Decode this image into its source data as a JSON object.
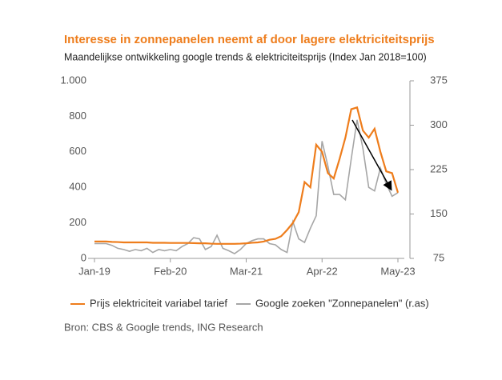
{
  "chart_data": {
    "type": "line",
    "title": "Interesse in zonnepanelen neemt af door lagere elektriciteitsprijs",
    "subtitle": "Maandelijkse ontwikkeling google trends & elektriciteitsprijs (Index Jan 2018=100)",
    "source": "Bron: CBS & Google trends, ING Research",
    "categories": [
      "Jan-19",
      null,
      null,
      null,
      null,
      null,
      null,
      null,
      null,
      null,
      null,
      null,
      null,
      "Feb-20",
      null,
      null,
      null,
      null,
      null,
      null,
      null,
      null,
      null,
      null,
      null,
      null,
      "Mar-21",
      null,
      null,
      null,
      null,
      null,
      null,
      null,
      null,
      null,
      null,
      null,
      null,
      "Apr-22",
      null,
      null,
      null,
      null,
      null,
      null,
      null,
      null,
      null,
      null,
      null,
      null,
      "May-23"
    ],
    "series": [
      {
        "name": "Prijs elektriciteit variabel tarief",
        "color": "#ee7d1c",
        "values": [
          95,
          95,
          95,
          93,
          92,
          90,
          90,
          90,
          90,
          90,
          88,
          88,
          88,
          87,
          87,
          87,
          87,
          86,
          85,
          85,
          83,
          82,
          82,
          82,
          82,
          83,
          85,
          88,
          90,
          95,
          105,
          110,
          125,
          160,
          200,
          260,
          430,
          400,
          640,
          600,
          480,
          450,
          560,
          680,
          840,
          850,
          720,
          680,
          730,
          600,
          490,
          480,
          370
        ]
      },
      {
        "name": "Google zoeken \"Zonnepanelen\" (r.as)",
        "color": "#a6a6a6",
        "axis": "y2",
        "values": [
          100,
          100,
          100,
          97,
          92,
          90,
          87,
          90,
          88,
          92,
          85,
          90,
          88,
          90,
          88,
          95,
          100,
          110,
          108,
          90,
          95,
          114,
          92,
          88,
          83,
          90,
          100,
          105,
          108,
          108,
          100,
          98,
          90,
          85,
          137,
          108,
          102,
          126,
          147,
          273,
          231,
          183,
          183,
          174,
          243,
          309,
          261,
          195,
          189,
          228,
          201,
          180,
          186
        ]
      }
    ],
    "ylim": [
      0,
      1000
    ],
    "yticks": [
      0,
      200,
      400,
      600,
      800,
      {
        "value": 1000,
        "label": "1.000"
      }
    ],
    "y2lim": [
      75,
      375
    ],
    "y2ticks": [
      75,
      150,
      225,
      300,
      375
    ],
    "grid": false
  }
}
